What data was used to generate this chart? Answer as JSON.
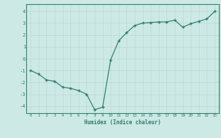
{
  "x": [
    0,
    1,
    2,
    3,
    4,
    5,
    6,
    7,
    8,
    9,
    10,
    11,
    12,
    13,
    14,
    15,
    16,
    17,
    18,
    19,
    20,
    21,
    22,
    23
  ],
  "y": [
    -1.0,
    -1.3,
    -1.8,
    -1.9,
    -2.4,
    -2.5,
    -2.7,
    -3.0,
    -4.3,
    -4.1,
    -0.1,
    1.5,
    2.2,
    2.8,
    3.0,
    3.05,
    3.1,
    3.1,
    3.25,
    2.65,
    2.95,
    3.15,
    3.35,
    4.0
  ],
  "xlabel": "Humidex (Indice chaleur)",
  "xlim": [
    -0.5,
    23.5
  ],
  "ylim": [
    -4.6,
    4.6
  ],
  "yticks": [
    -4,
    -3,
    -2,
    -1,
    0,
    1,
    2,
    3,
    4
  ],
  "xticks": [
    0,
    1,
    2,
    3,
    4,
    5,
    6,
    7,
    8,
    9,
    10,
    11,
    12,
    13,
    14,
    15,
    16,
    17,
    18,
    19,
    20,
    21,
    22,
    23
  ],
  "line_color": "#2e7d6e",
  "marker": "+",
  "bg_color": "#cce9e5",
  "grid_color": "#b8d8d4",
  "axis_color": "#2e7d6e",
  "label_color": "#2e7d6e",
  "font_family": "monospace"
}
